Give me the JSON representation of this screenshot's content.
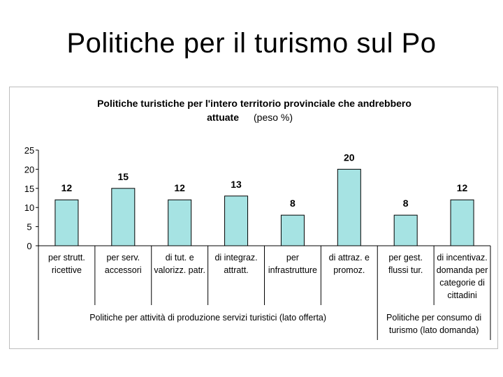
{
  "slide": {
    "title": "Politiche per il turismo sul Po"
  },
  "chart_data": {
    "type": "bar",
    "title_bold": "Politiche turistiche per l'intero territorio provinciale che andrebbero",
    "title_bold_line2": "attuate",
    "title_normal": "(peso %)",
    "categories": [
      [
        "per strutt.",
        "ricettive"
      ],
      [
        "per serv.",
        "accessori"
      ],
      [
        "di tut. e",
        "valorizz. patr."
      ],
      [
        "di integraz.",
        "attratt."
      ],
      [
        "per",
        "infrastrutture"
      ],
      [
        "di attraz. e",
        "promoz."
      ],
      [
        "per gest.",
        "flussi tur."
      ],
      [
        "di incentivaz.",
        "domanda per",
        "categorie di",
        "cittadini"
      ]
    ],
    "values": [
      12,
      15,
      12,
      13,
      8,
      20,
      8,
      12
    ],
    "ylim": [
      0,
      25
    ],
    "yticks": [
      0,
      5,
      10,
      15,
      20,
      25
    ],
    "groups": [
      {
        "label": "Politiche per attività di produzione servizi turistici (lato offerta)",
        "count": 6
      },
      {
        "label": [
          "Politiche per consumo di",
          "turismo (lato domanda)"
        ],
        "count": 2
      }
    ],
    "bar_color": "#a6e3e3",
    "bar_stroke": "#000000",
    "grid": false
  }
}
